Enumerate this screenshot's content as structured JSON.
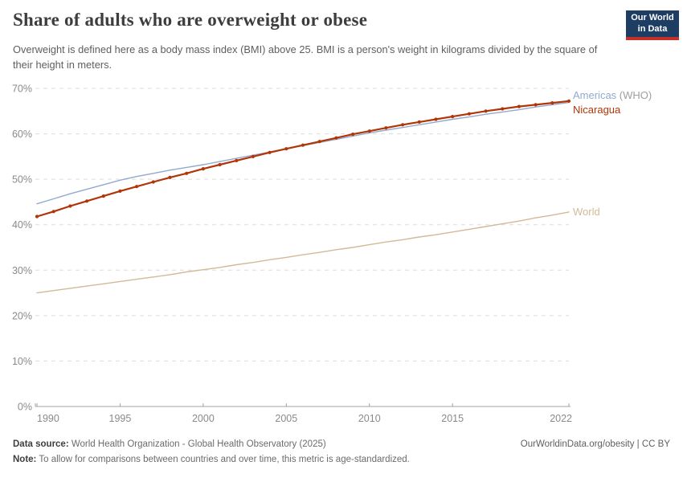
{
  "header": {
    "title": "Share of adults who are overweight or obese",
    "subtitle": "Overweight is defined here as a body mass index (BMI) above 25. BMI is a person's weight in kilograms divided by the square of their height in meters."
  },
  "logo": {
    "line1": "Our World",
    "line2": "in Data",
    "bg_color": "#1d3d63",
    "stripe_color": "#c7302a"
  },
  "chart_data": {
    "type": "line",
    "title": "Share of adults who are overweight or obese",
    "xlabel": "",
    "ylabel": "",
    "ylim": [
      0,
      70
    ],
    "y_tick_suffix": "%",
    "y_ticks": [
      0,
      10,
      20,
      30,
      40,
      50,
      60,
      70
    ],
    "x_ticks": [
      1990,
      1995,
      2000,
      2005,
      2010,
      2015,
      2022
    ],
    "grid": "horizontal-dashed",
    "legend_position": "right-of-line-ends",
    "x": [
      1990,
      1991,
      1992,
      1993,
      1994,
      1995,
      1996,
      1997,
      1998,
      1999,
      2000,
      2001,
      2002,
      2003,
      2004,
      2005,
      2006,
      2007,
      2008,
      2009,
      2010,
      2011,
      2012,
      2013,
      2014,
      2015,
      2016,
      2017,
      2018,
      2019,
      2020,
      2021,
      2022
    ],
    "series": [
      {
        "id": "americas",
        "name": "Americas (WHO)",
        "label": "Americas",
        "label_suffix": " (WHO)",
        "color": "#92a9cf",
        "markers": false,
        "values": [
          44.6,
          45.7,
          46.8,
          47.8,
          48.8,
          49.8,
          50.6,
          51.3,
          52.0,
          52.6,
          53.2,
          53.9,
          54.6,
          55.3,
          56.0,
          56.7,
          57.4,
          58.1,
          58.8,
          59.5,
          60.2,
          60.8,
          61.4,
          62.0,
          62.6,
          63.2,
          63.7,
          64.3,
          64.8,
          65.3,
          65.9,
          66.4,
          66.9
        ]
      },
      {
        "id": "nicaragua",
        "name": "Nicaragua",
        "label": "Nicaragua",
        "label_suffix": "",
        "color": "#b13507",
        "markers": true,
        "values": [
          41.8,
          42.9,
          44.1,
          45.2,
          46.3,
          47.4,
          48.4,
          49.4,
          50.4,
          51.3,
          52.3,
          53.2,
          54.1,
          55.0,
          55.9,
          56.7,
          57.5,
          58.3,
          59.1,
          59.9,
          60.6,
          61.3,
          62.0,
          62.6,
          63.2,
          63.8,
          64.4,
          65.0,
          65.5,
          66.0,
          66.4,
          66.8,
          67.2
        ]
      },
      {
        "id": "world",
        "name": "World",
        "label": "World",
        "label_suffix": "",
        "color": "#d2ba97",
        "markers": false,
        "values": [
          25.0,
          25.5,
          26.0,
          26.5,
          27.0,
          27.5,
          28.0,
          28.5,
          29.0,
          29.6,
          30.1,
          30.6,
          31.2,
          31.7,
          32.3,
          32.8,
          33.4,
          33.9,
          34.5,
          35.0,
          35.6,
          36.2,
          36.7,
          37.3,
          37.8,
          38.4,
          39.0,
          39.6,
          40.2,
          40.8,
          41.5,
          42.1,
          42.8
        ]
      }
    ],
    "axis_color": "#a3a3a3",
    "grid_color": "#dcdcdc",
    "tick_label_color": "#8a8a8a"
  },
  "footer": {
    "datasource_label": "Data source:",
    "datasource_text": " World Health Organization - Global Health Observatory (2025)",
    "rights": "OurWorldinData.org/obesity | CC BY",
    "note_label": "Note:",
    "note_text": " To allow for comparisons between countries and over time, this metric is age-standardized."
  }
}
